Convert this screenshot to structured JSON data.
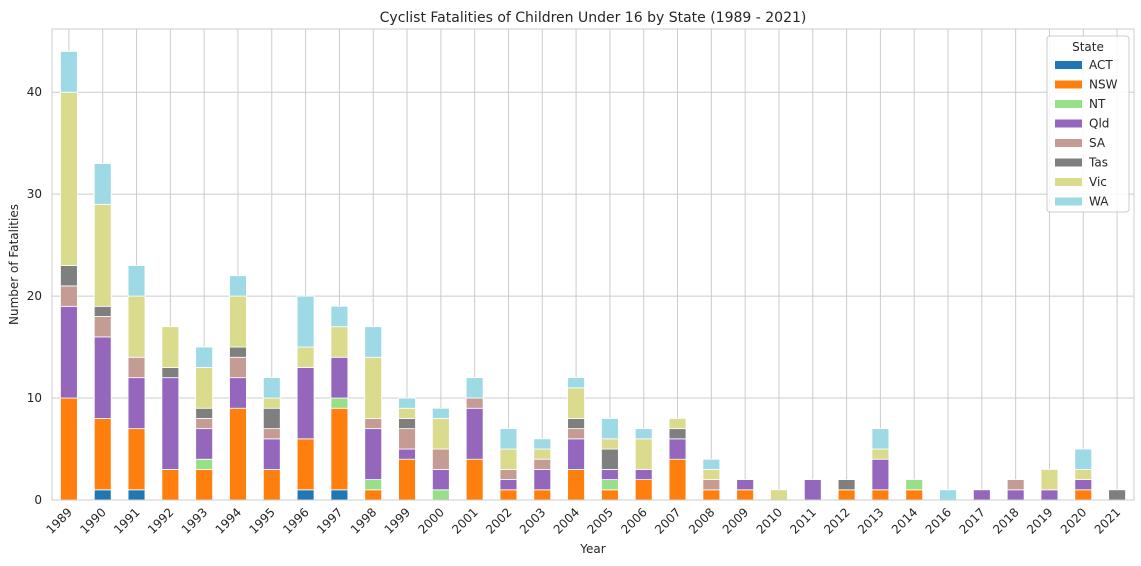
{
  "chart_data": {
    "type": "bar",
    "stacked": true,
    "title": "Cyclist Fatalities of Children Under 16 by State (1989 - 2021)",
    "xlabel": "Year",
    "ylabel": "Number of Fatalities",
    "ylim": [
      0,
      46.2
    ],
    "yticks": [
      0,
      10,
      20,
      30,
      40
    ],
    "grid": true,
    "legend_title": "State",
    "legend_position": "top-right",
    "categories": [
      "1989",
      "1990",
      "1991",
      "1992",
      "1993",
      "1994",
      "1995",
      "1996",
      "1997",
      "1998",
      "1999",
      "2000",
      "2001",
      "2002",
      "2003",
      "2004",
      "2005",
      "2006",
      "2007",
      "2008",
      "2009",
      "2010",
      "2011",
      "2012",
      "2013",
      "2014",
      "2016",
      "2017",
      "2018",
      "2019",
      "2020",
      "2021"
    ],
    "series": [
      {
        "name": "ACT",
        "color": "#1f77b4",
        "values": [
          0,
          1,
          1,
          0,
          0,
          0,
          0,
          1,
          1,
          0,
          0,
          0,
          0,
          0,
          0,
          0,
          0,
          0,
          0,
          0,
          0,
          0,
          0,
          0,
          0,
          0,
          0,
          0,
          0,
          0,
          0,
          0
        ]
      },
      {
        "name": "NSW",
        "color": "#ff7f0e",
        "values": [
          10,
          7,
          6,
          3,
          3,
          9,
          3,
          5,
          8,
          1,
          4,
          0,
          4,
          1,
          1,
          3,
          1,
          2,
          4,
          1,
          1,
          0,
          0,
          1,
          1,
          1,
          0,
          0,
          0,
          0,
          1,
          0
        ]
      },
      {
        "name": "NT",
        "color": "#98df8a",
        "values": [
          0,
          0,
          0,
          0,
          1,
          0,
          0,
          0,
          1,
          1,
          0,
          1,
          0,
          0,
          0,
          0,
          1,
          0,
          0,
          0,
          0,
          0,
          0,
          0,
          0,
          1,
          0,
          0,
          0,
          0,
          0,
          0
        ]
      },
      {
        "name": "Qld",
        "color": "#9467bd",
        "values": [
          9,
          8,
          5,
          9,
          3,
          3,
          3,
          7,
          4,
          5,
          1,
          2,
          5,
          1,
          2,
          3,
          1,
          1,
          2,
          0,
          1,
          0,
          2,
          0,
          3,
          0,
          0,
          1,
          1,
          1,
          1,
          0
        ]
      },
      {
        "name": "SA",
        "color": "#c49c94",
        "values": [
          2,
          2,
          2,
          0,
          1,
          2,
          1,
          0,
          0,
          1,
          2,
          2,
          1,
          1,
          1,
          1,
          0,
          0,
          0,
          1,
          0,
          0,
          0,
          0,
          0,
          0,
          0,
          0,
          1,
          0,
          0,
          0
        ]
      },
      {
        "name": "Tas",
        "color": "#7f7f7f",
        "values": [
          2,
          1,
          0,
          1,
          1,
          1,
          2,
          0,
          0,
          0,
          1,
          0,
          0,
          0,
          0,
          1,
          2,
          0,
          1,
          0,
          0,
          0,
          0,
          1,
          0,
          0,
          0,
          0,
          0,
          0,
          0,
          1
        ]
      },
      {
        "name": "Vic",
        "color": "#dbdb8d",
        "values": [
          17,
          10,
          6,
          4,
          4,
          5,
          1,
          2,
          3,
          6,
          1,
          3,
          0,
          2,
          1,
          3,
          1,
          3,
          1,
          1,
          0,
          1,
          0,
          0,
          1,
          0,
          0,
          0,
          0,
          2,
          1,
          0
        ]
      },
      {
        "name": "WA",
        "color": "#9edae5",
        "values": [
          4,
          4,
          3,
          0,
          2,
          2,
          2,
          5,
          2,
          3,
          1,
          1,
          2,
          2,
          1,
          1,
          2,
          1,
          0,
          1,
          0,
          0,
          0,
          0,
          2,
          0,
          1,
          0,
          0,
          0,
          2,
          0
        ]
      }
    ]
  }
}
